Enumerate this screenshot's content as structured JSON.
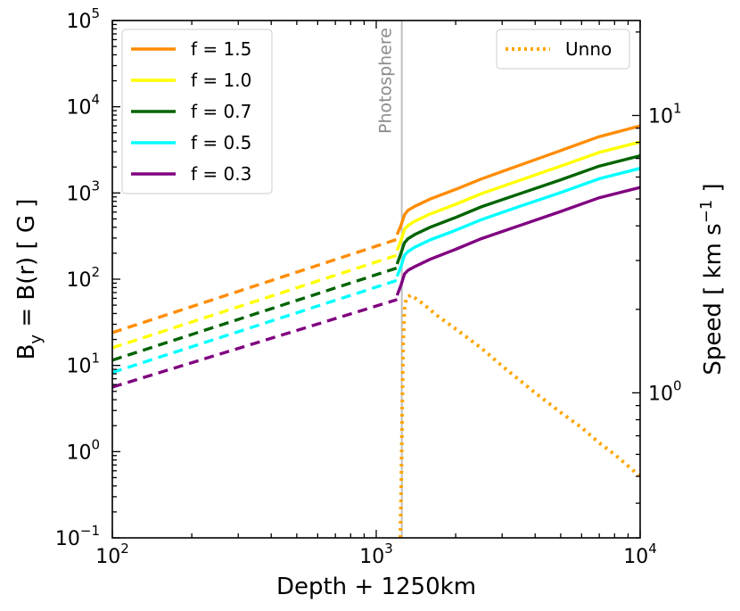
{
  "chart_data": {
    "type": "line",
    "xlabel": "Depth + 1250km",
    "ylabel_left_base": "B",
    "ylabel_left_sub": "y",
    "ylabel_left_rest": " = B(r) [ G ]",
    "ylabel_right_main": "Speed [ km s",
    "ylabel_right_sup": "−1",
    "ylabel_right_end": " ]",
    "x_scale": "log",
    "xlim": [
      100,
      10000
    ],
    "ylim_left": [
      0.1,
      100000
    ],
    "ylim_right": [
      0.3,
      22
    ],
    "x_ticks": [
      {
        "base": "10",
        "exp": "2"
      },
      {
        "base": "10",
        "exp": "3"
      },
      {
        "base": "10",
        "exp": "4"
      }
    ],
    "y_ticks_left": [
      {
        "base": "10",
        "exp": "−1"
      },
      {
        "base": "10",
        "exp": "0"
      },
      {
        "base": "10",
        "exp": "1"
      },
      {
        "base": "10",
        "exp": "2"
      },
      {
        "base": "10",
        "exp": "3"
      },
      {
        "base": "10",
        "exp": "4"
      },
      {
        "base": "10",
        "exp": "5"
      }
    ],
    "y_ticks_right": [
      {
        "base": "10",
        "exp": "0"
      },
      {
        "base": "10",
        "exp": "1"
      }
    ],
    "photosphere": {
      "x": 1250,
      "label": "Photosphere",
      "color": "#bfbfbf"
    },
    "legend_left_position": "top-left",
    "legend_right_position": "top-right",
    "series": [
      {
        "name": "f = 1.5",
        "color": "#ff8c00",
        "dashed_x": [
          100,
          1200
        ],
        "dashed_y": [
          24,
          290
        ],
        "solid_x": [
          1200,
          1240,
          1280,
          1320,
          1400,
          1600,
          2000,
          2500,
          3500,
          5000,
          7000,
          10000
        ],
        "solid_y": [
          330,
          420,
          560,
          630,
          700,
          850,
          1100,
          1450,
          2100,
          3100,
          4500,
          6000
        ]
      },
      {
        "name": "f = 1.0",
        "color": "#ffff00",
        "dashed_x": [
          100,
          1200
        ],
        "dashed_y": [
          16,
          190
        ],
        "solid_x": [
          1200,
          1240,
          1280,
          1320,
          1400,
          1600,
          2000,
          2500,
          3500,
          5000,
          7000,
          10000
        ],
        "solid_y": [
          215,
          280,
          380,
          420,
          470,
          570,
          740,
          980,
          1400,
          2050,
          2950,
          3900
        ]
      },
      {
        "name": "f = 0.7",
        "color": "#006400",
        "dashed_x": [
          100,
          1200
        ],
        "dashed_y": [
          11.5,
          135
        ],
        "solid_x": [
          1200,
          1240,
          1280,
          1320,
          1400,
          1600,
          2000,
          2500,
          3500,
          5000,
          7000,
          10000
        ],
        "solid_y": [
          150,
          200,
          265,
          295,
          330,
          400,
          520,
          690,
          980,
          1420,
          2050,
          2700
        ]
      },
      {
        "name": "f = 0.5",
        "color": "#00ffff",
        "dashed_x": [
          100,
          1200
        ],
        "dashed_y": [
          8.3,
          97
        ],
        "solid_x": [
          1200,
          1240,
          1280,
          1320,
          1400,
          1600,
          2000,
          2500,
          3500,
          5000,
          7000,
          10000
        ],
        "solid_y": [
          108,
          140,
          190,
          210,
          235,
          285,
          370,
          490,
          700,
          1010,
          1460,
          1930
        ]
      },
      {
        "name": "f = 0.3",
        "color": "#800080",
        "dashed_x": [
          100,
          1200
        ],
        "dashed_y": [
          5.6,
          58
        ],
        "solid_x": [
          1200,
          1240,
          1280,
          1320,
          1400,
          1600,
          2000,
          2500,
          3500,
          5000,
          7000,
          10000
        ],
        "solid_y": [
          65,
          85,
          115,
          127,
          140,
          170,
          222,
          295,
          420,
          610,
          880,
          1160
        ]
      }
    ],
    "unno": {
      "name": "Unno",
      "color": "#ffa500",
      "x": [
        1235,
        1245,
        1255,
        1265,
        1280,
        1300,
        1350,
        1400,
        1500,
        1700,
        2000,
        2500,
        3000,
        4000,
        5000,
        6000,
        7000,
        8000,
        10000
      ],
      "speed": [
        0.3,
        0.5,
        0.9,
        1.5,
        2.0,
        2.2,
        2.25,
        2.2,
        2.1,
        1.9,
        1.7,
        1.45,
        1.25,
        1.0,
        0.85,
        0.75,
        0.66,
        0.6,
        0.5
      ]
    }
  }
}
